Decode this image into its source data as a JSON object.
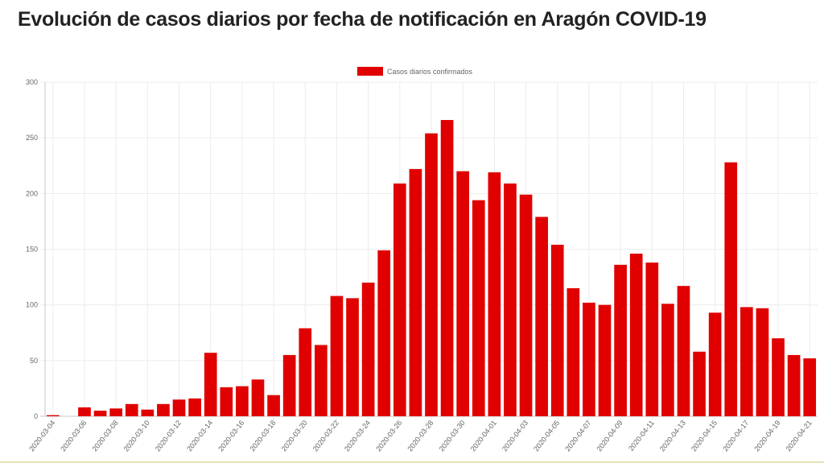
{
  "page": {
    "title": "Evolución de casos diarios por fecha de notificación en Aragón COVID-19"
  },
  "chart_data": {
    "type": "bar",
    "title": "",
    "xlabel": "",
    "ylabel": "",
    "ylim": [
      0,
      300
    ],
    "yticks": [
      0,
      50,
      100,
      150,
      200,
      250,
      300
    ],
    "grid": true,
    "legend_position": "top-center",
    "bar_color": "#e00000",
    "categories": [
      "2020-03-04",
      "2020-03-05",
      "2020-03-06",
      "2020-03-07",
      "2020-03-08",
      "2020-03-09",
      "2020-03-10",
      "2020-03-11",
      "2020-03-12",
      "2020-03-13",
      "2020-03-14",
      "2020-03-15",
      "2020-03-16",
      "2020-03-17",
      "2020-03-18",
      "2020-03-19",
      "2020-03-20",
      "2020-03-21",
      "2020-03-22",
      "2020-03-23",
      "2020-03-24",
      "2020-03-25",
      "2020-03-26",
      "2020-03-27",
      "2020-03-28",
      "2020-03-29",
      "2020-03-30",
      "2020-03-31",
      "2020-04-01",
      "2020-04-02",
      "2020-04-03",
      "2020-04-04",
      "2020-04-05",
      "2020-04-06",
      "2020-04-07",
      "2020-04-08",
      "2020-04-09",
      "2020-04-10",
      "2020-04-11",
      "2020-04-12",
      "2020-04-13",
      "2020-04-14",
      "2020-04-15",
      "2020-04-16",
      "2020-04-17",
      "2020-04-18",
      "2020-04-19",
      "2020-04-20",
      "2020-04-21"
    ],
    "x_tick_labels": [
      "2020-03-04",
      "2020-03-06",
      "2020-03-08",
      "2020-03-10",
      "2020-03-12",
      "2020-03-14",
      "2020-03-16",
      "2020-03-18",
      "2020-03-20",
      "2020-03-22",
      "2020-03-24",
      "2020-03-26",
      "2020-03-28",
      "2020-03-30",
      "2020-04-01",
      "2020-04-03",
      "2020-04-05",
      "2020-04-07",
      "2020-04-09",
      "2020-04-11",
      "2020-04-13",
      "2020-04-15",
      "2020-04-17",
      "2020-04-19",
      "2020-04-21"
    ],
    "series": [
      {
        "name": "Casos diarios confirmados",
        "values": [
          1,
          0,
          8,
          5,
          7,
          11,
          6,
          11,
          15,
          16,
          57,
          26,
          27,
          33,
          19,
          55,
          79,
          64,
          108,
          106,
          120,
          149,
          209,
          222,
          254,
          266,
          220,
          194,
          219,
          209,
          199,
          179,
          154,
          115,
          102,
          100,
          136,
          146,
          138,
          101,
          117,
          58,
          93,
          228,
          98,
          97,
          70,
          55,
          52
        ]
      }
    ]
  }
}
